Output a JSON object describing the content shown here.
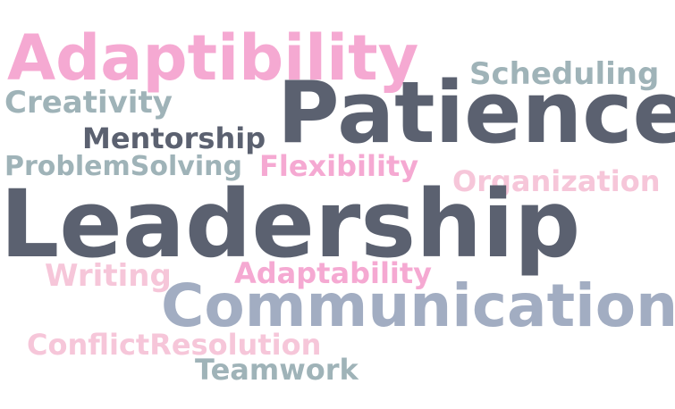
{
  "words": [
    {
      "id": "adaptibility-large",
      "text": "Adaptibility",
      "color": "#f5a9d2"
    },
    {
      "id": "scheduling",
      "text": "Scheduling",
      "color": "#9fb3b8"
    },
    {
      "id": "creativity",
      "text": "Creativity",
      "color": "#9fb3b8"
    },
    {
      "id": "patience",
      "text": "Patience",
      "color": "#5b6170"
    },
    {
      "id": "mentorship",
      "text": "Mentorship",
      "color": "#5b6170"
    },
    {
      "id": "problemsolving",
      "text": "ProblemSolving",
      "color": "#9fb3b8"
    },
    {
      "id": "flexibility",
      "text": "Flexibility",
      "color": "#f5a9d2"
    },
    {
      "id": "organization",
      "text": "Organization",
      "color": "#f6c6d9"
    },
    {
      "id": "leadership",
      "text": "Leadership",
      "color": "#5b6170"
    },
    {
      "id": "writing",
      "text": "Writing",
      "color": "#f6c6d9"
    },
    {
      "id": "adaptability",
      "text": "Adaptability",
      "color": "#f5a9d2"
    },
    {
      "id": "communication",
      "text": "Communication",
      "color": "#a2adc2"
    },
    {
      "id": "conflictresolution",
      "text": "ConflictResolution",
      "color": "#f6c6d9"
    },
    {
      "id": "teamwork",
      "text": "Teamwork",
      "color": "#9fb3b8"
    }
  ]
}
